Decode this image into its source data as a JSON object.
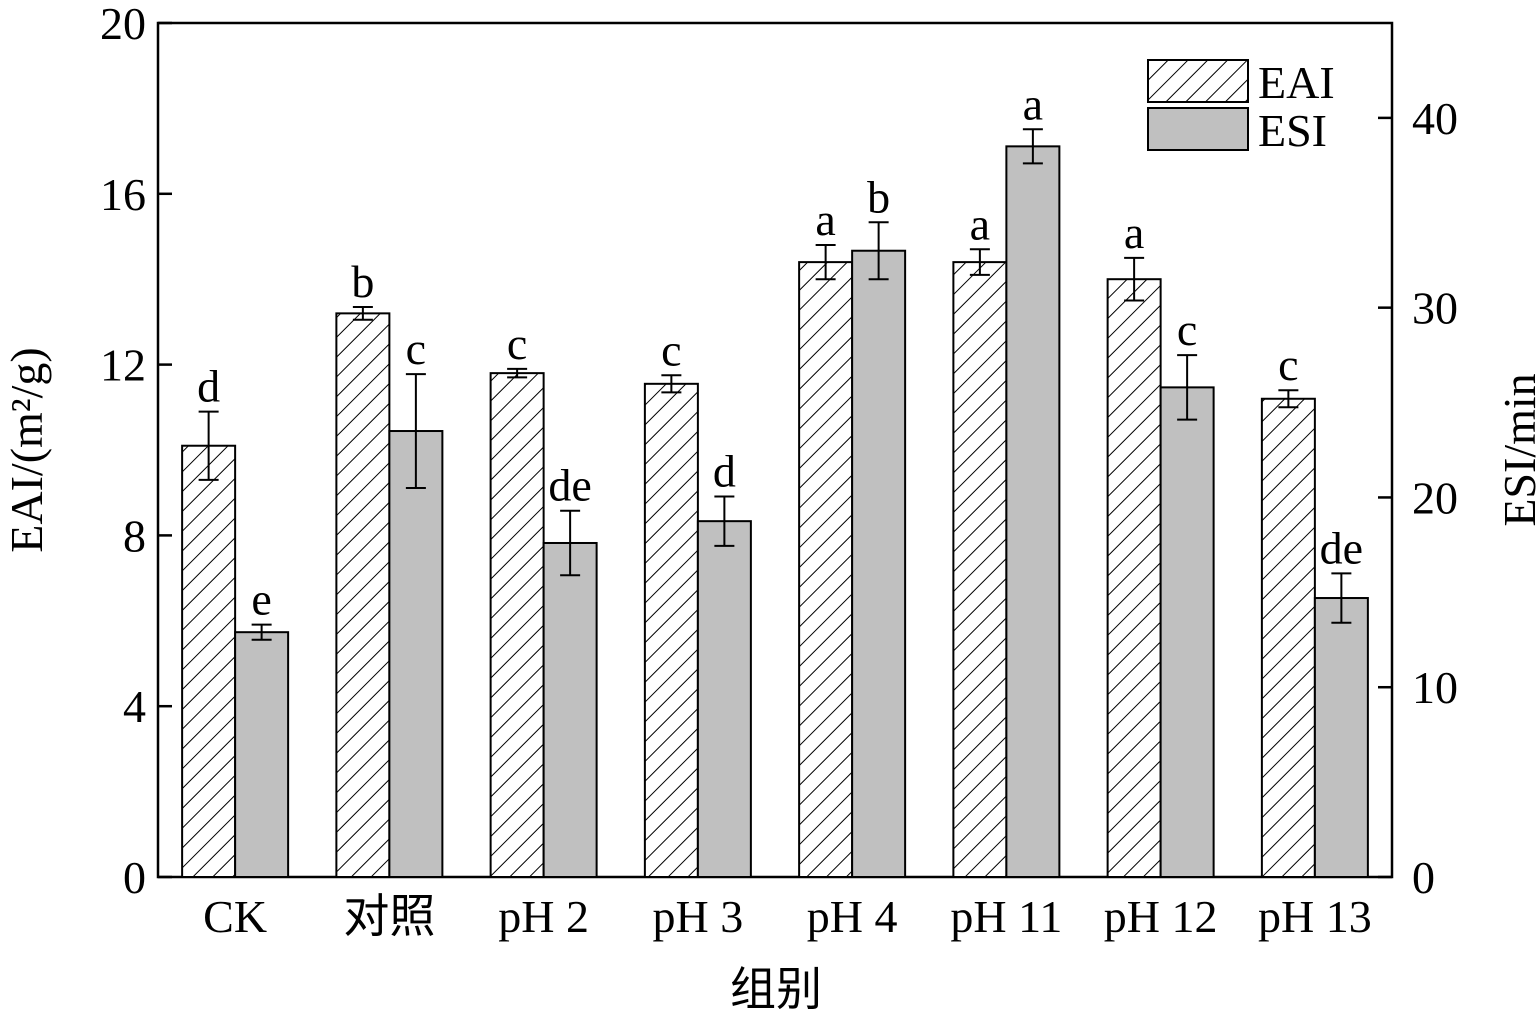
{
  "chart_data": {
    "type": "bar",
    "x_label": "组别",
    "y_label": "EAI/(m²/g)",
    "y2_label": "ESI/min",
    "categories": [
      "CK",
      "对照",
      "pH 2",
      "pH 3",
      "pH 4",
      "pH 11",
      "pH 12",
      "pH 13"
    ],
    "series": [
      {
        "name": "EAI",
        "color": "#ffffff",
        "hatch": true,
        "values": [
          10.1,
          13.2,
          11.8,
          11.55,
          14.4,
          14.4,
          14.0,
          11.2
        ],
        "errors": [
          0.8,
          0.15,
          0.1,
          0.2,
          0.4,
          0.3,
          0.5,
          0.2
        ],
        "letters": [
          "d",
          "b",
          "c",
          "c",
          "a",
          "a",
          "a",
          "c"
        ]
      },
      {
        "name": "ESI",
        "color": "#c0c0c0",
        "hatch": false,
        "axis": "y2",
        "values": [
          12.9,
          23.5,
          17.6,
          18.75,
          33.0,
          38.5,
          25.8,
          14.7
        ],
        "errors": [
          0.4,
          3.0,
          1.7,
          1.3,
          1.5,
          0.9,
          1.7,
          1.3
        ],
        "letters": [
          "e",
          "c",
          "de",
          "d",
          "b",
          "a",
          "c",
          "de"
        ]
      }
    ],
    "ylim": [
      0,
      20
    ],
    "yticks": [
      0,
      4,
      8,
      12,
      16,
      20
    ],
    "y2lim": [
      0,
      45
    ],
    "y2ticks": [
      0,
      10,
      20,
      30,
      40
    ],
    "legend": "top-right"
  }
}
